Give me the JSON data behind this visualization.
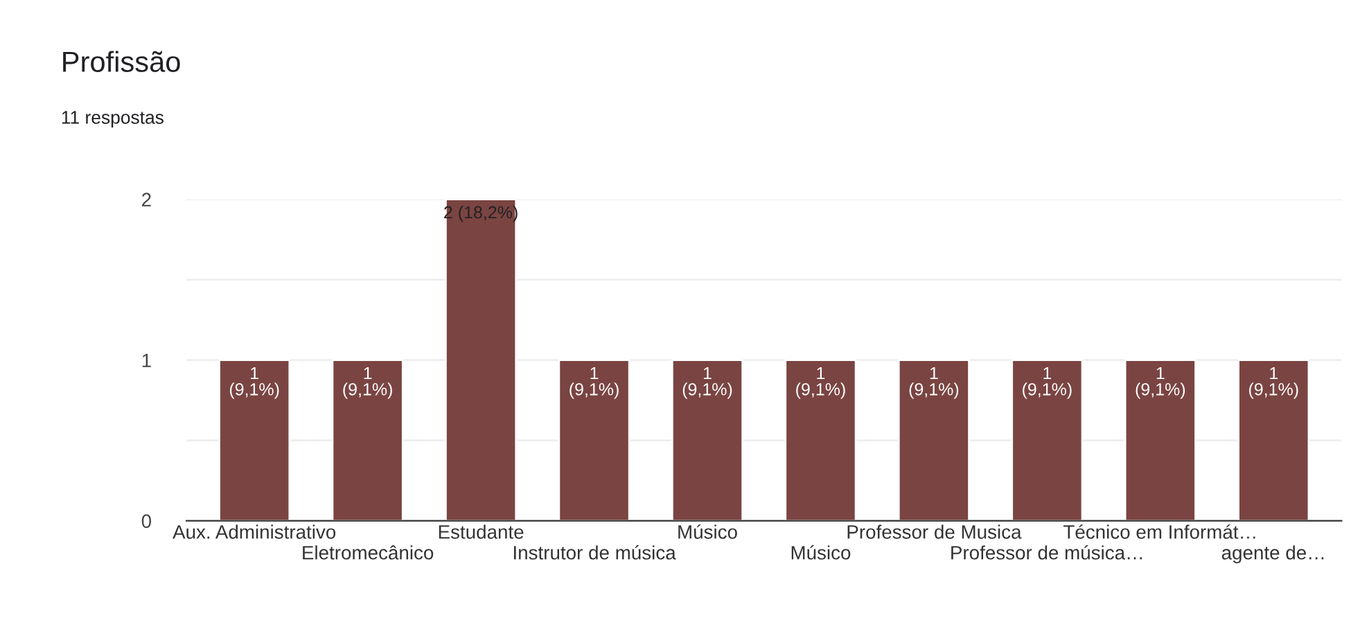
{
  "chart_data": {
    "type": "bar",
    "title": "Profissão",
    "subtitle": "11 respostas",
    "categories": [
      "Aux. Administrativo",
      "Eletromecânico",
      "Estudante",
      "Instrutor de música",
      "Músico",
      "Músico",
      "Professor de Musica",
      "Professor de música…",
      "Técnico em Informát…",
      "agente de…"
    ],
    "values": [
      1,
      1,
      2,
      1,
      1,
      1,
      1,
      1,
      1,
      1
    ],
    "value_labels": [
      "1\n(9,1%)",
      "1\n(9,1%)",
      "2 (18,2%)",
      "1\n(9,1%)",
      "1\n(9,1%)",
      "1\n(9,1%)",
      "1\n(9,1%)",
      "1\n(9,1%)",
      "1\n(9,1%)",
      "1\n(9,1%)"
    ],
    "color": "#7a4442",
    "ylim": [
      0,
      2
    ],
    "yticks": [
      0,
      {
        "value": 0.5,
        "label": null
      },
      1,
      {
        "value": 1.5,
        "label": null
      },
      2
    ],
    "grid": "y"
  }
}
